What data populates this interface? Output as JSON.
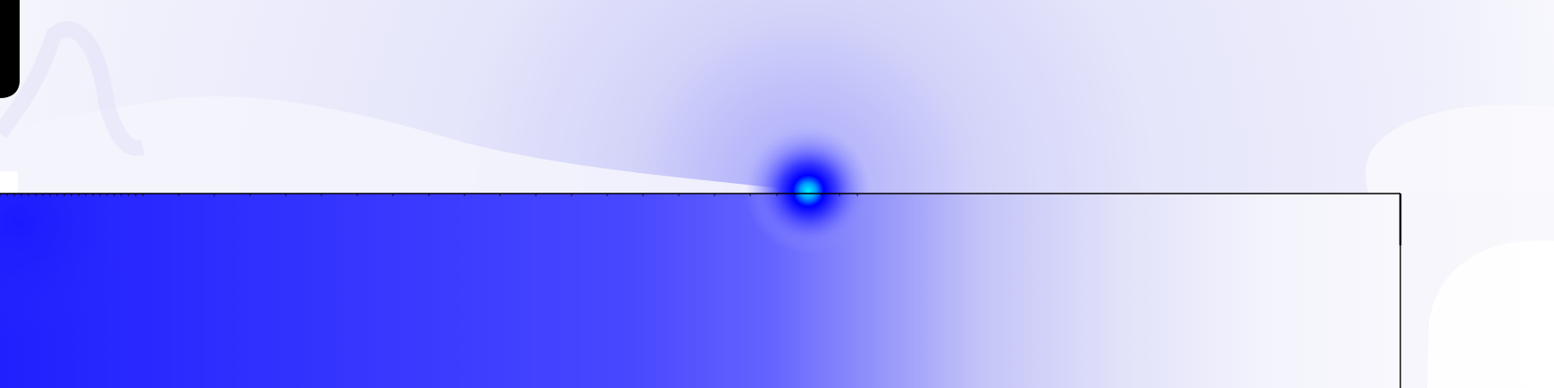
{
  "view": {
    "kind": "contour-field-plot",
    "labels_shown": false,
    "colors": {
      "background": "#ffffff",
      "field_light": "#ebebfa",
      "field_mid": "#c9c9f7",
      "field_strong": "#6060ff",
      "field_max": "#1c1cff",
      "singularity_core": "#00e6ff",
      "boundary_line": "#000000",
      "marker": "#000000"
    }
  }
}
